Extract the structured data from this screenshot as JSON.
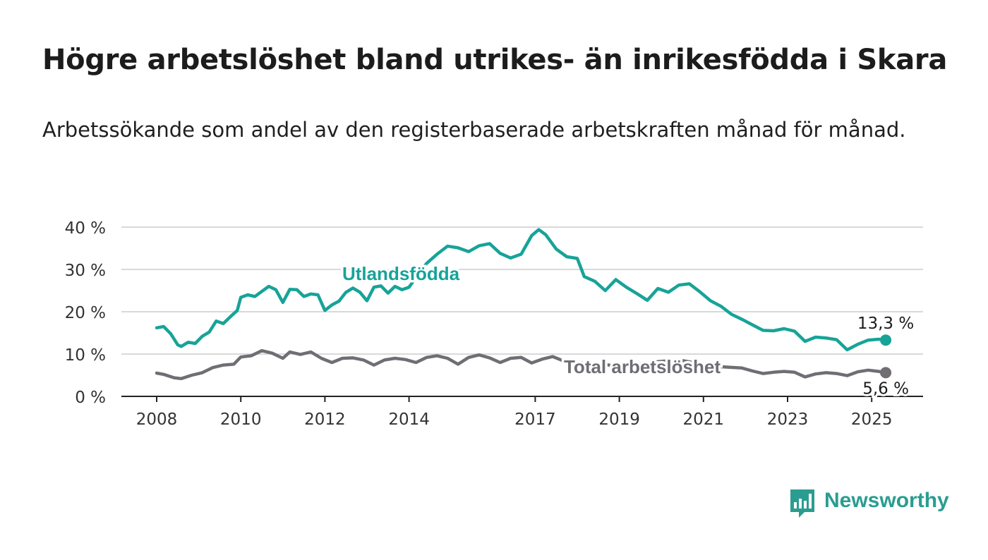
{
  "title": "Högre arbetslöshet bland utrikes- än inrikesfödda i Skara",
  "subtitle": "Arbetssökande som andel av den registerbaserade arbetskraften månad för månad.",
  "brand": {
    "name": "Newsworthy",
    "color": "#2a9d90",
    "icon": "bar-chart-speech-bubble-icon"
  },
  "chart_data": {
    "type": "line",
    "y_ticks": [
      "0 %",
      "10 %",
      "20 %",
      "30 %",
      "40 %"
    ],
    "ylim": [
      0,
      40
    ],
    "x_ticks": [
      "2008",
      "2010",
      "2012",
      "2014",
      "2017",
      "2019",
      "2021",
      "2023",
      "2025"
    ],
    "grid": true,
    "series": [
      {
        "name": "Utlandsfödda",
        "color": "#17a398",
        "end_label": "13,3 %",
        "values": [
          [
            "2008-01",
            16.2
          ],
          [
            "2008-03",
            16.5
          ],
          [
            "2008-05",
            14.8
          ],
          [
            "2008-07",
            12.2
          ],
          [
            "2008-08",
            11.8
          ],
          [
            "2008-10",
            12.8
          ],
          [
            "2008-12",
            12.5
          ],
          [
            "2009-02",
            14.2
          ],
          [
            "2009-04",
            15.2
          ],
          [
            "2009-06",
            17.8
          ],
          [
            "2009-08",
            17.2
          ],
          [
            "2009-10",
            18.8
          ],
          [
            "2009-12",
            20.3
          ],
          [
            "2010-01",
            23.4
          ],
          [
            "2010-03",
            24.0
          ],
          [
            "2010-05",
            23.6
          ],
          [
            "2010-07",
            24.8
          ],
          [
            "2010-09",
            26.0
          ],
          [
            "2010-11",
            25.2
          ],
          [
            "2011-01",
            22.2
          ],
          [
            "2011-03",
            25.3
          ],
          [
            "2011-05",
            25.2
          ],
          [
            "2011-07",
            23.6
          ],
          [
            "2011-09",
            24.2
          ],
          [
            "2011-11",
            24.0
          ],
          [
            "2012-01",
            20.3
          ],
          [
            "2012-03",
            21.6
          ],
          [
            "2012-05",
            22.5
          ],
          [
            "2012-07",
            24.6
          ],
          [
            "2012-09",
            25.6
          ],
          [
            "2012-11",
            24.6
          ],
          [
            "2013-01",
            22.6
          ],
          [
            "2013-03",
            25.8
          ],
          [
            "2013-05",
            26.1
          ],
          [
            "2013-07",
            24.4
          ],
          [
            "2013-09",
            26.0
          ],
          [
            "2013-11",
            25.2
          ],
          [
            "2014-01",
            25.8
          ],
          [
            "2014-03",
            28.1
          ],
          [
            "2014-06",
            31.4
          ],
          [
            "2014-09",
            33.6
          ],
          [
            "2014-12",
            35.5
          ],
          [
            "2015-03",
            35.1
          ],
          [
            "2015-06",
            34.2
          ],
          [
            "2015-09",
            35.6
          ],
          [
            "2015-12",
            36.1
          ],
          [
            "2016-03",
            33.8
          ],
          [
            "2016-06",
            32.7
          ],
          [
            "2016-09",
            33.6
          ],
          [
            "2016-12",
            38.0
          ],
          [
            "2017-02",
            39.4
          ],
          [
            "2017-04",
            38.2
          ],
          [
            "2017-07",
            34.8
          ],
          [
            "2017-10",
            33.0
          ],
          [
            "2018-01",
            32.6
          ],
          [
            "2018-03",
            28.3
          ],
          [
            "2018-06",
            27.2
          ],
          [
            "2018-09",
            25.0
          ],
          [
            "2018-12",
            27.6
          ],
          [
            "2019-03",
            25.8
          ],
          [
            "2019-06",
            24.3
          ],
          [
            "2019-09",
            22.7
          ],
          [
            "2019-12",
            25.5
          ],
          [
            "2020-03",
            24.6
          ],
          [
            "2020-06",
            26.3
          ],
          [
            "2020-09",
            26.6
          ],
          [
            "2020-12",
            24.7
          ],
          [
            "2021-03",
            22.6
          ],
          [
            "2021-06",
            21.3
          ],
          [
            "2021-09",
            19.4
          ],
          [
            "2021-12",
            18.2
          ],
          [
            "2022-03",
            16.9
          ],
          [
            "2022-06",
            15.6
          ],
          [
            "2022-09",
            15.5
          ],
          [
            "2022-12",
            16.0
          ],
          [
            "2023-03",
            15.4
          ],
          [
            "2023-06",
            13.0
          ],
          [
            "2023-09",
            14.0
          ],
          [
            "2023-12",
            13.8
          ],
          [
            "2024-03",
            13.4
          ],
          [
            "2024-06",
            11.0
          ],
          [
            "2024-09",
            12.3
          ],
          [
            "2024-12",
            13.3
          ],
          [
            "2025-03",
            13.5
          ],
          [
            "2025-05",
            13.3
          ]
        ]
      },
      {
        "name": "Total arbetslöshet",
        "color": "#706d73",
        "end_label": "5,6 %",
        "values": [
          [
            "2008-01",
            5.5
          ],
          [
            "2008-03",
            5.2
          ],
          [
            "2008-06",
            4.4
          ],
          [
            "2008-08",
            4.2
          ],
          [
            "2008-11",
            5.0
          ],
          [
            "2009-02",
            5.6
          ],
          [
            "2009-05",
            6.8
          ],
          [
            "2009-08",
            7.4
          ],
          [
            "2009-11",
            7.6
          ],
          [
            "2010-01",
            9.3
          ],
          [
            "2010-04",
            9.6
          ],
          [
            "2010-07",
            10.8
          ],
          [
            "2010-10",
            10.2
          ],
          [
            "2011-01",
            9.0
          ],
          [
            "2011-03",
            10.5
          ],
          [
            "2011-06",
            9.9
          ],
          [
            "2011-09",
            10.5
          ],
          [
            "2011-12",
            9.0
          ],
          [
            "2012-03",
            8.0
          ],
          [
            "2012-06",
            9.0
          ],
          [
            "2012-09",
            9.1
          ],
          [
            "2012-12",
            8.6
          ],
          [
            "2013-03",
            7.4
          ],
          [
            "2013-06",
            8.6
          ],
          [
            "2013-09",
            9.0
          ],
          [
            "2013-12",
            8.7
          ],
          [
            "2014-03",
            8.0
          ],
          [
            "2014-06",
            9.2
          ],
          [
            "2014-09",
            9.6
          ],
          [
            "2014-12",
            9.0
          ],
          [
            "2015-03",
            7.6
          ],
          [
            "2015-06",
            9.2
          ],
          [
            "2015-09",
            9.8
          ],
          [
            "2015-12",
            9.1
          ],
          [
            "2016-03",
            8.0
          ],
          [
            "2016-06",
            9.0
          ],
          [
            "2016-09",
            9.2
          ],
          [
            "2016-12",
            7.9
          ],
          [
            "2017-03",
            8.8
          ],
          [
            "2017-06",
            9.4
          ],
          [
            "2017-09",
            8.4
          ],
          [
            "2017-12",
            8.0
          ],
          [
            "2018-06",
            7.8
          ],
          [
            "2018-12",
            7.2
          ],
          [
            "2019-06",
            7.5
          ],
          [
            "2019-12",
            8.2
          ],
          [
            "2020-06",
            8.6
          ],
          [
            "2020-12",
            7.7
          ],
          [
            "2021-06",
            7.0
          ],
          [
            "2021-12",
            6.7
          ],
          [
            "2022-03",
            6.0
          ],
          [
            "2022-06",
            5.4
          ],
          [
            "2022-09",
            5.7
          ],
          [
            "2022-12",
            5.9
          ],
          [
            "2023-03",
            5.7
          ],
          [
            "2023-06",
            4.6
          ],
          [
            "2023-09",
            5.3
          ],
          [
            "2023-12",
            5.6
          ],
          [
            "2024-03",
            5.4
          ],
          [
            "2024-06",
            4.9
          ],
          [
            "2024-09",
            5.8
          ],
          [
            "2024-12",
            6.2
          ],
          [
            "2025-03",
            5.9
          ],
          [
            "2025-05",
            5.6
          ]
        ]
      }
    ]
  }
}
